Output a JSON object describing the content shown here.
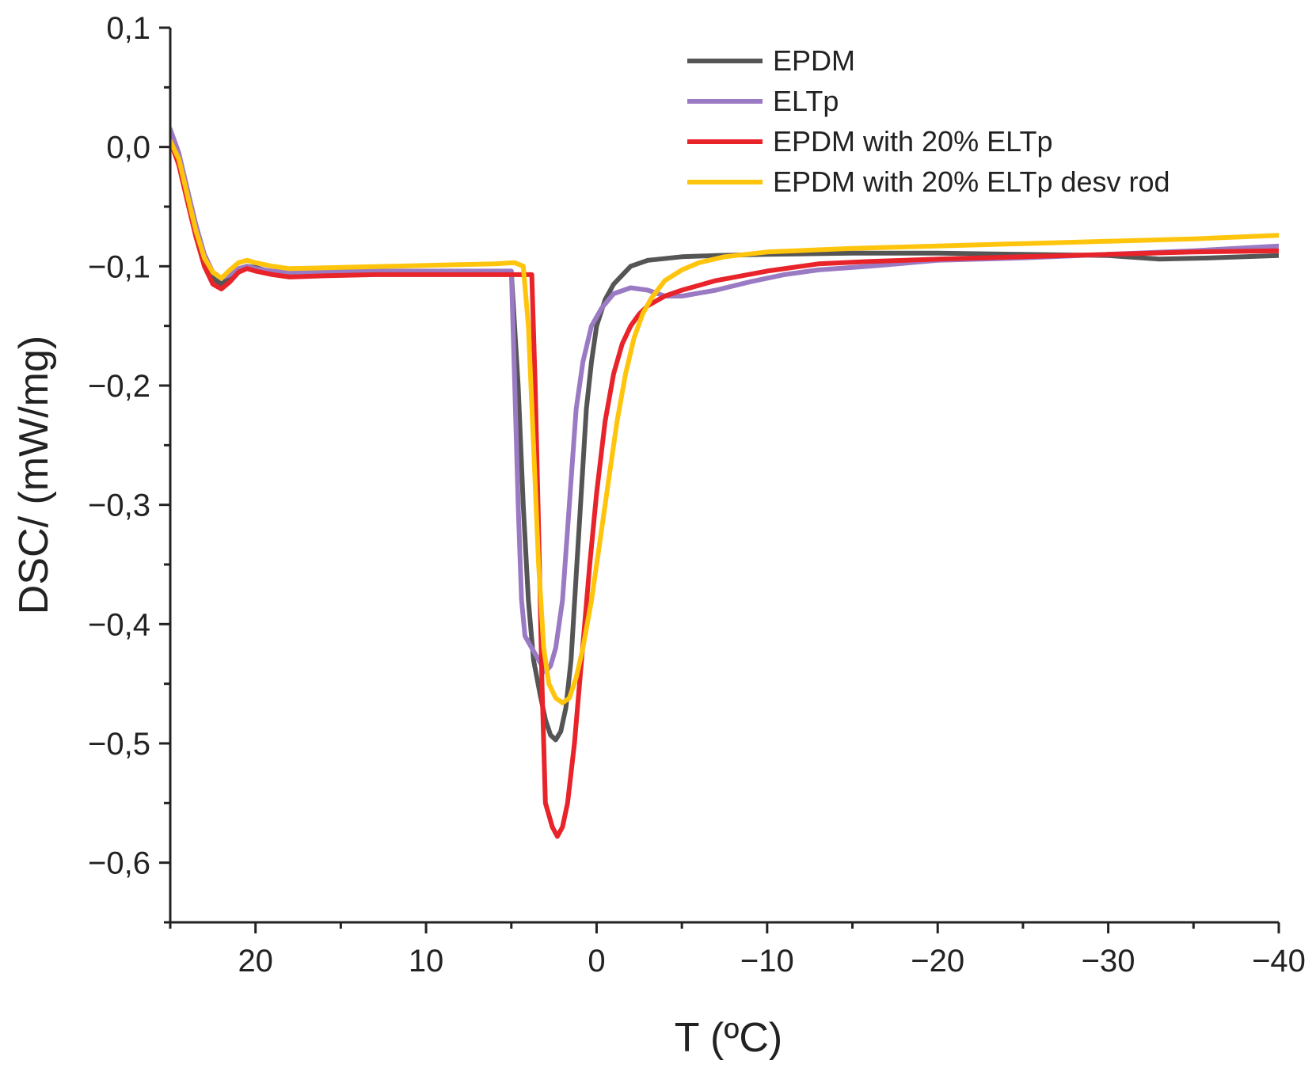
{
  "chart_data": {
    "type": "line",
    "xlabel": "T (ºC)",
    "ylabel": "DSC/ (mW/mg)",
    "xlim": [
      25,
      -40
    ],
    "ylim": [
      -0.65,
      0.1
    ],
    "x_ticks": [
      {
        "value": 20,
        "label": "20"
      },
      {
        "value": 10,
        "label": "10"
      },
      {
        "value": 0,
        "label": "0"
      },
      {
        "value": -10,
        "label": "−10"
      },
      {
        "value": -20,
        "label": "−20"
      },
      {
        "value": -30,
        "label": "−30"
      },
      {
        "value": -40,
        "label": "−40"
      }
    ],
    "y_ticks": [
      {
        "value": 0.1,
        "label": "0,1"
      },
      {
        "value": 0.0,
        "label": "0,0"
      },
      {
        "value": -0.1,
        "label": "−0,1"
      },
      {
        "value": -0.2,
        "label": "−0,2"
      },
      {
        "value": -0.3,
        "label": "−0,3"
      },
      {
        "value": -0.4,
        "label": "−0,4"
      },
      {
        "value": -0.5,
        "label": "−0,5"
      },
      {
        "value": -0.6,
        "label": "−0,6"
      }
    ],
    "legend_position": "top-right",
    "series": [
      {
        "name": "EPDM",
        "color": "#555555",
        "points": [
          [
            25,
            0.01
          ],
          [
            24.5,
            -0.01
          ],
          [
            24,
            -0.04
          ],
          [
            23.5,
            -0.07
          ],
          [
            23,
            -0.095
          ],
          [
            22.5,
            -0.11
          ],
          [
            22,
            -0.115
          ],
          [
            21.5,
            -0.11
          ],
          [
            21,
            -0.103
          ],
          [
            20.5,
            -0.1
          ],
          [
            20,
            -0.101
          ],
          [
            19.5,
            -0.103
          ],
          [
            19,
            -0.105
          ],
          [
            18,
            -0.107
          ],
          [
            16,
            -0.106
          ],
          [
            13,
            -0.105
          ],
          [
            10,
            -0.105
          ],
          [
            7,
            -0.105
          ],
          [
            5.2,
            -0.105
          ],
          [
            5,
            -0.105
          ],
          [
            4.6,
            -0.2
          ],
          [
            4.3,
            -0.3
          ],
          [
            4,
            -0.38
          ],
          [
            3.7,
            -0.43
          ],
          [
            3.3,
            -0.46
          ],
          [
            3,
            -0.48
          ],
          [
            2.7,
            -0.493
          ],
          [
            2.4,
            -0.497
          ],
          [
            2.1,
            -0.49
          ],
          [
            1.8,
            -0.47
          ],
          [
            1.5,
            -0.43
          ],
          [
            1.2,
            -0.36
          ],
          [
            0.9,
            -0.29
          ],
          [
            0.6,
            -0.22
          ],
          [
            0.3,
            -0.18
          ],
          [
            0,
            -0.15
          ],
          [
            -0.5,
            -0.128
          ],
          [
            -1,
            -0.115
          ],
          [
            -2,
            -0.1
          ],
          [
            -3,
            -0.095
          ],
          [
            -5,
            -0.092
          ],
          [
            -7,
            -0.091
          ],
          [
            -10,
            -0.09
          ],
          [
            -15,
            -0.089
          ],
          [
            -20,
            -0.089
          ],
          [
            -25,
            -0.09
          ],
          [
            -30,
            -0.091
          ],
          [
            -33,
            -0.094
          ],
          [
            -36,
            -0.093
          ],
          [
            -40,
            -0.091
          ]
        ]
      },
      {
        "name": "ELTp",
        "color": "#9b7ac4",
        "points": [
          [
            25,
            0.015
          ],
          [
            24.5,
            -0.005
          ],
          [
            24,
            -0.035
          ],
          [
            23.5,
            -0.065
          ],
          [
            23,
            -0.09
          ],
          [
            22.5,
            -0.105
          ],
          [
            22,
            -0.11
          ],
          [
            21.5,
            -0.107
          ],
          [
            21,
            -0.102
          ],
          [
            20.5,
            -0.1
          ],
          [
            20,
            -0.102
          ],
          [
            19,
            -0.104
          ],
          [
            18,
            -0.105
          ],
          [
            15,
            -0.104
          ],
          [
            12,
            -0.104
          ],
          [
            9,
            -0.104
          ],
          [
            6,
            -0.104
          ],
          [
            5.2,
            -0.104
          ],
          [
            5,
            -0.104
          ],
          [
            4.8,
            -0.2
          ],
          [
            4.6,
            -0.3
          ],
          [
            4.4,
            -0.38
          ],
          [
            4.2,
            -0.41
          ],
          [
            3.8,
            -0.42
          ],
          [
            3.4,
            -0.43
          ],
          [
            3,
            -0.44
          ],
          [
            2.7,
            -0.435
          ],
          [
            2.4,
            -0.42
          ],
          [
            2,
            -0.38
          ],
          [
            1.6,
            -0.3
          ],
          [
            1.2,
            -0.22
          ],
          [
            0.8,
            -0.18
          ],
          [
            0.3,
            -0.15
          ],
          [
            -0.3,
            -0.135
          ],
          [
            -1,
            -0.123
          ],
          [
            -2,
            -0.118
          ],
          [
            -3,
            -0.12
          ],
          [
            -4,
            -0.125
          ],
          [
            -5,
            -0.125
          ],
          [
            -7,
            -0.12
          ],
          [
            -9,
            -0.113
          ],
          [
            -11,
            -0.107
          ],
          [
            -13,
            -0.103
          ],
          [
            -16,
            -0.1
          ],
          [
            -20,
            -0.095
          ],
          [
            -25,
            -0.093
          ],
          [
            -30,
            -0.09
          ],
          [
            -35,
            -0.087
          ],
          [
            -40,
            -0.083
          ]
        ]
      },
      {
        "name": "EPDM with 20% ELTp",
        "color": "#e8232a",
        "points": [
          [
            25,
            0.005
          ],
          [
            24.5,
            -0.015
          ],
          [
            24,
            -0.045
          ],
          [
            23.5,
            -0.075
          ],
          [
            23,
            -0.1
          ],
          [
            22.5,
            -0.115
          ],
          [
            22,
            -0.119
          ],
          [
            21.5,
            -0.113
          ],
          [
            21,
            -0.105
          ],
          [
            20.5,
            -0.102
          ],
          [
            20,
            -0.104
          ],
          [
            19,
            -0.107
          ],
          [
            18,
            -0.109
          ],
          [
            16,
            -0.108
          ],
          [
            13,
            -0.107
          ],
          [
            10,
            -0.107
          ],
          [
            7,
            -0.107
          ],
          [
            4,
            -0.107
          ],
          [
            3.8,
            -0.107
          ],
          [
            3.6,
            -0.2
          ],
          [
            3.4,
            -0.32
          ],
          [
            3.2,
            -0.45
          ],
          [
            3,
            -0.55
          ],
          [
            2.8,
            -0.56
          ],
          [
            2.6,
            -0.57
          ],
          [
            2.3,
            -0.578
          ],
          [
            2,
            -0.57
          ],
          [
            1.7,
            -0.55
          ],
          [
            1.3,
            -0.5
          ],
          [
            1,
            -0.45
          ],
          [
            0.7,
            -0.4
          ],
          [
            0.4,
            -0.35
          ],
          [
            0,
            -0.29
          ],
          [
            -0.5,
            -0.23
          ],
          [
            -1,
            -0.19
          ],
          [
            -1.5,
            -0.165
          ],
          [
            -2,
            -0.15
          ],
          [
            -2.5,
            -0.14
          ],
          [
            -3,
            -0.133
          ],
          [
            -4,
            -0.125
          ],
          [
            -5,
            -0.12
          ],
          [
            -7,
            -0.112
          ],
          [
            -10,
            -0.104
          ],
          [
            -13,
            -0.098
          ],
          [
            -16,
            -0.096
          ],
          [
            -20,
            -0.094
          ],
          [
            -25,
            -0.092
          ],
          [
            -30,
            -0.09
          ],
          [
            -35,
            -0.088
          ],
          [
            -40,
            -0.087
          ]
        ]
      },
      {
        "name": "EPDM with 20% ELTp desv rod",
        "color": "#ffc40c",
        "points": [
          [
            25,
            0.005
          ],
          [
            24.5,
            -0.01
          ],
          [
            24,
            -0.04
          ],
          [
            23.5,
            -0.07
          ],
          [
            23,
            -0.093
          ],
          [
            22.5,
            -0.105
          ],
          [
            22,
            -0.11
          ],
          [
            21.5,
            -0.103
          ],
          [
            21,
            -0.097
          ],
          [
            20.5,
            -0.095
          ],
          [
            20,
            -0.097
          ],
          [
            19,
            -0.1
          ],
          [
            18,
            -0.102
          ],
          [
            15,
            -0.101
          ],
          [
            12,
            -0.1
          ],
          [
            9,
            -0.099
          ],
          [
            6,
            -0.098
          ],
          [
            4.8,
            -0.097
          ],
          [
            4.3,
            -0.1
          ],
          [
            4,
            -0.15
          ],
          [
            3.7,
            -0.25
          ],
          [
            3.4,
            -0.35
          ],
          [
            3.1,
            -0.42
          ],
          [
            2.8,
            -0.45
          ],
          [
            2.4,
            -0.462
          ],
          [
            2,
            -0.466
          ],
          [
            1.6,
            -0.462
          ],
          [
            1.2,
            -0.445
          ],
          [
            0.8,
            -0.42
          ],
          [
            0.3,
            -0.38
          ],
          [
            -0.2,
            -0.33
          ],
          [
            -0.7,
            -0.28
          ],
          [
            -1.2,
            -0.23
          ],
          [
            -1.7,
            -0.19
          ],
          [
            -2.2,
            -0.16
          ],
          [
            -2.7,
            -0.14
          ],
          [
            -3.2,
            -0.127
          ],
          [
            -4,
            -0.112
          ],
          [
            -5,
            -0.103
          ],
          [
            -6,
            -0.097
          ],
          [
            -7.5,
            -0.092
          ],
          [
            -10,
            -0.088
          ],
          [
            -15,
            -0.085
          ],
          [
            -20,
            -0.083
          ],
          [
            -25,
            -0.081
          ],
          [
            -30,
            -0.079
          ],
          [
            -35,
            -0.077
          ],
          [
            -40,
            -0.074
          ]
        ]
      }
    ]
  }
}
